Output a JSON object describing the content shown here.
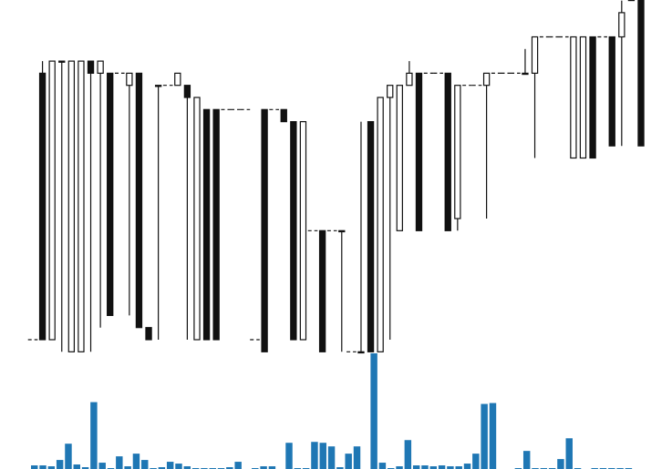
{
  "chart_data": [
    {
      "type": "candlestick",
      "title": "",
      "xlabel": "",
      "ylabel": "",
      "ylim": [
        0,
        29
      ],
      "grid": false,
      "legend": "none",
      "colors": {
        "up_fill": "#ffffff",
        "down_fill": "#111111",
        "stroke": "#111111",
        "dash": "#111111"
      },
      "candles": [
        {
          "o": 0,
          "h": 0,
          "l": 0,
          "c": 0
        },
        {
          "o": 22,
          "h": 23,
          "l": 0,
          "c": 0
        },
        {
          "o": 0,
          "h": 23,
          "l": 0,
          "c": 23
        },
        {
          "o": 23,
          "h": 23,
          "l": -1,
          "c": 23
        },
        {
          "o": -1,
          "h": 23,
          "l": -1,
          "c": 23
        },
        {
          "o": -1,
          "h": 23,
          "l": -1,
          "c": 23
        },
        {
          "o": 23,
          "h": 23,
          "l": -1,
          "c": 22
        },
        {
          "o": 22,
          "h": 23,
          "l": 1,
          "c": 23
        },
        {
          "o": 22,
          "h": 22,
          "l": 2,
          "c": 2
        },
        {
          "o": 22,
          "h": 22,
          "l": 22,
          "c": 22
        },
        {
          "o": 21,
          "h": 22,
          "l": 2,
          "c": 22
        },
        {
          "o": 22,
          "h": 22,
          "l": 1,
          "c": 1
        },
        {
          "o": 1,
          "h": 1,
          "l": 0,
          "c": 0
        },
        {
          "o": 21,
          "h": 21,
          "l": 0,
          "c": 21
        },
        {
          "o": 21,
          "h": 21,
          "l": 21,
          "c": 21
        },
        {
          "o": 21,
          "h": 22,
          "l": 21,
          "c": 22
        },
        {
          "o": 21,
          "h": 21,
          "l": 0,
          "c": 20
        },
        {
          "o": 0,
          "h": 20,
          "l": 0,
          "c": 20
        },
        {
          "o": 19,
          "h": 19,
          "l": 0,
          "c": 0
        },
        {
          "o": 19,
          "h": 19,
          "l": 0,
          "c": 0
        },
        {
          "o": 19,
          "h": 19,
          "l": 19,
          "c": 19
        },
        {
          "o": 19,
          "h": 19,
          "l": 19,
          "c": 19
        },
        {
          "o": 19,
          "h": 19,
          "l": 19,
          "c": 19
        },
        {
          "o": 0,
          "h": 0,
          "l": 0,
          "c": 0
        },
        {
          "o": 19,
          "h": 19,
          "l": -1,
          "c": -1
        },
        {
          "o": 19,
          "h": 19,
          "l": 19,
          "c": 19
        },
        {
          "o": 19,
          "h": 19,
          "l": 18,
          "c": 18
        },
        {
          "o": 18,
          "h": 18,
          "l": 0,
          "c": 0
        },
        {
          "o": 0,
          "h": 18,
          "l": 0,
          "c": 18
        },
        {
          "o": 9,
          "h": 9,
          "l": 9,
          "c": 9
        },
        {
          "o": 9,
          "h": 9,
          "l": -1,
          "c": -1
        },
        {
          "o": 9,
          "h": 9,
          "l": 9,
          "c": 9
        },
        {
          "o": 9,
          "h": 9,
          "l": -1,
          "c": 9
        },
        {
          "o": -1,
          "h": -1,
          "l": -1,
          "c": -1
        },
        {
          "o": -1,
          "h": 18,
          "l": -1,
          "c": -1
        },
        {
          "o": 18,
          "h": 18,
          "l": -1,
          "c": -1
        },
        {
          "o": -1,
          "h": 20,
          "l": -1,
          "c": 20
        },
        {
          "o": 20,
          "h": 21,
          "l": 0,
          "c": 21
        },
        {
          "o": 9,
          "h": 21,
          "l": 9,
          "c": 21
        },
        {
          "o": 21,
          "h": 23,
          "l": 21,
          "c": 22
        },
        {
          "o": 22,
          "h": 22,
          "l": 9,
          "c": 9
        },
        {
          "o": 22,
          "h": 22,
          "l": 22,
          "c": 22
        },
        {
          "o": 22,
          "h": 22,
          "l": 22,
          "c": 22
        },
        {
          "o": 22,
          "h": 22,
          "l": 9,
          "c": 9
        },
        {
          "o": 10,
          "h": 21,
          "l": 9,
          "c": 21
        },
        {
          "o": 21,
          "h": 21,
          "l": 21,
          "c": 21
        },
        {
          "o": 21,
          "h": 21,
          "l": 21,
          "c": 21
        },
        {
          "o": 21,
          "h": 22,
          "l": 10,
          "c": 22
        },
        {
          "o": 22,
          "h": 22,
          "l": 22,
          "c": 22
        },
        {
          "o": 22,
          "h": 22,
          "l": 22,
          "c": 22
        },
        {
          "o": 22,
          "h": 22,
          "l": 22,
          "c": 22
        },
        {
          "o": 22,
          "h": 24,
          "l": 22,
          "c": 22
        },
        {
          "o": 22,
          "h": 25,
          "l": 15,
          "c": 25
        },
        {
          "o": 25,
          "h": 25,
          "l": 25,
          "c": 25
        },
        {
          "o": 25,
          "h": 25,
          "l": 25,
          "c": 25
        },
        {
          "o": 25,
          "h": 25,
          "l": 25,
          "c": 25
        },
        {
          "o": 15,
          "h": 25,
          "l": 15,
          "c": 25
        },
        {
          "o": 15,
          "h": 25,
          "l": 15,
          "c": 25
        },
        {
          "o": 25,
          "h": 25,
          "l": 15,
          "c": 15
        },
        {
          "o": 25,
          "h": 25,
          "l": 25,
          "c": 25
        },
        {
          "o": 25,
          "h": 25,
          "l": 16,
          "c": 16
        },
        {
          "o": 25,
          "h": 28,
          "l": 16,
          "c": 27
        },
        {
          "o": 28,
          "h": 29,
          "l": 28,
          "c": 29
        },
        {
          "o": 29,
          "h": 30,
          "l": 16,
          "c": 16
        }
      ]
    },
    {
      "type": "bar",
      "title": "",
      "xlabel": "",
      "ylabel": "",
      "ylim": [
        0,
        130
      ],
      "grid": false,
      "legend": "none",
      "colors": {
        "bar": "#1f77b4"
      },
      "values": [
        4,
        4,
        3,
        10,
        28,
        5,
        2,
        74,
        7,
        1,
        14,
        3,
        17,
        10,
        1,
        2,
        8,
        6,
        3,
        1,
        1,
        1,
        1,
        2,
        8,
        0,
        1,
        3,
        3,
        0,
        29,
        1,
        1,
        30,
        29,
        25,
        2,
        17,
        25,
        0,
        128,
        7,
        1,
        3,
        32,
        4,
        4,
        3,
        4,
        3,
        3,
        6,
        17,
        72,
        73,
        0,
        0,
        1,
        20,
        1,
        1,
        1,
        11,
        34,
        1,
        0,
        1,
        1,
        1,
        1,
        1
      ]
    }
  ]
}
